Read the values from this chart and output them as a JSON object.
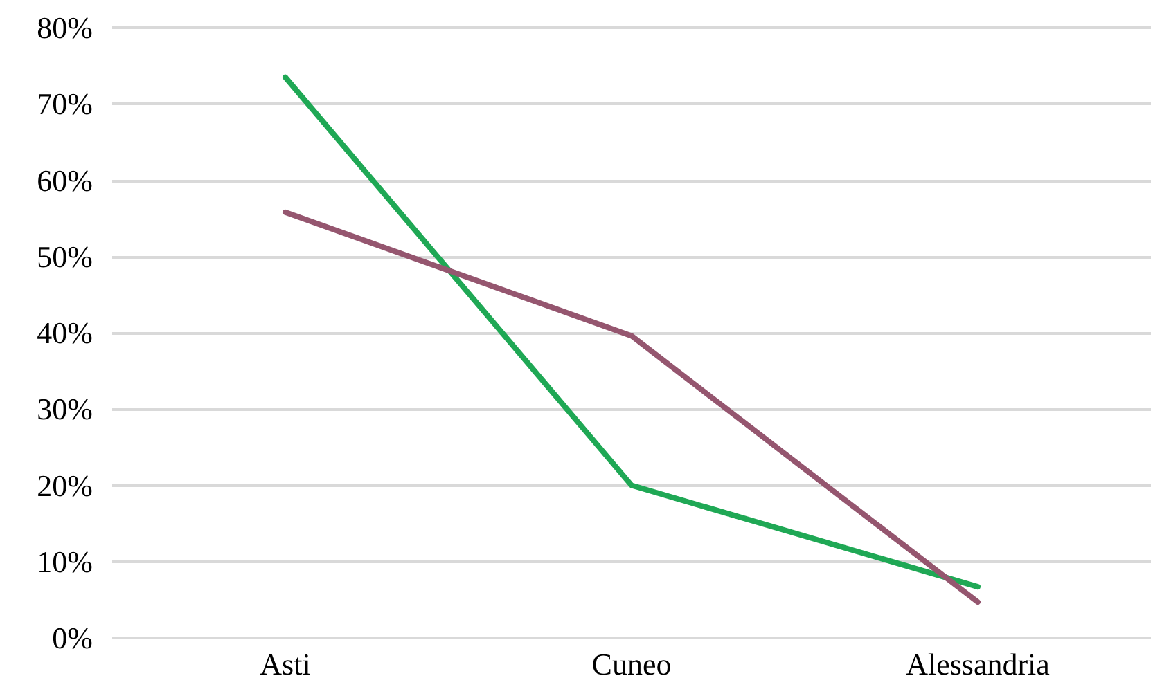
{
  "chart_data": {
    "type": "line",
    "categories": [
      "Asti",
      "Cuneo",
      "Alessandria"
    ],
    "series": [
      {
        "color": "#1fa855",
        "values": [
          73.5,
          20,
          6.7
        ]
      },
      {
        "color": "#95566f",
        "values": [
          55.8,
          39.6,
          4.7
        ]
      }
    ],
    "ylim": [
      0,
      80
    ],
    "yticks": [
      {
        "value": 0,
        "label": "0%"
      },
      {
        "value": 10,
        "label": "10%"
      },
      {
        "value": 20,
        "label": "20%"
      },
      {
        "value": 30,
        "label": "30%"
      },
      {
        "value": 40,
        "label": "40%"
      },
      {
        "value": 50,
        "label": "50%"
      },
      {
        "value": 60,
        "label": "60%"
      },
      {
        "value": 70,
        "label": "70%"
      },
      {
        "value": 80,
        "label": "80%"
      }
    ],
    "grid": "y",
    "marker": "none",
    "line_style": "solid"
  }
}
